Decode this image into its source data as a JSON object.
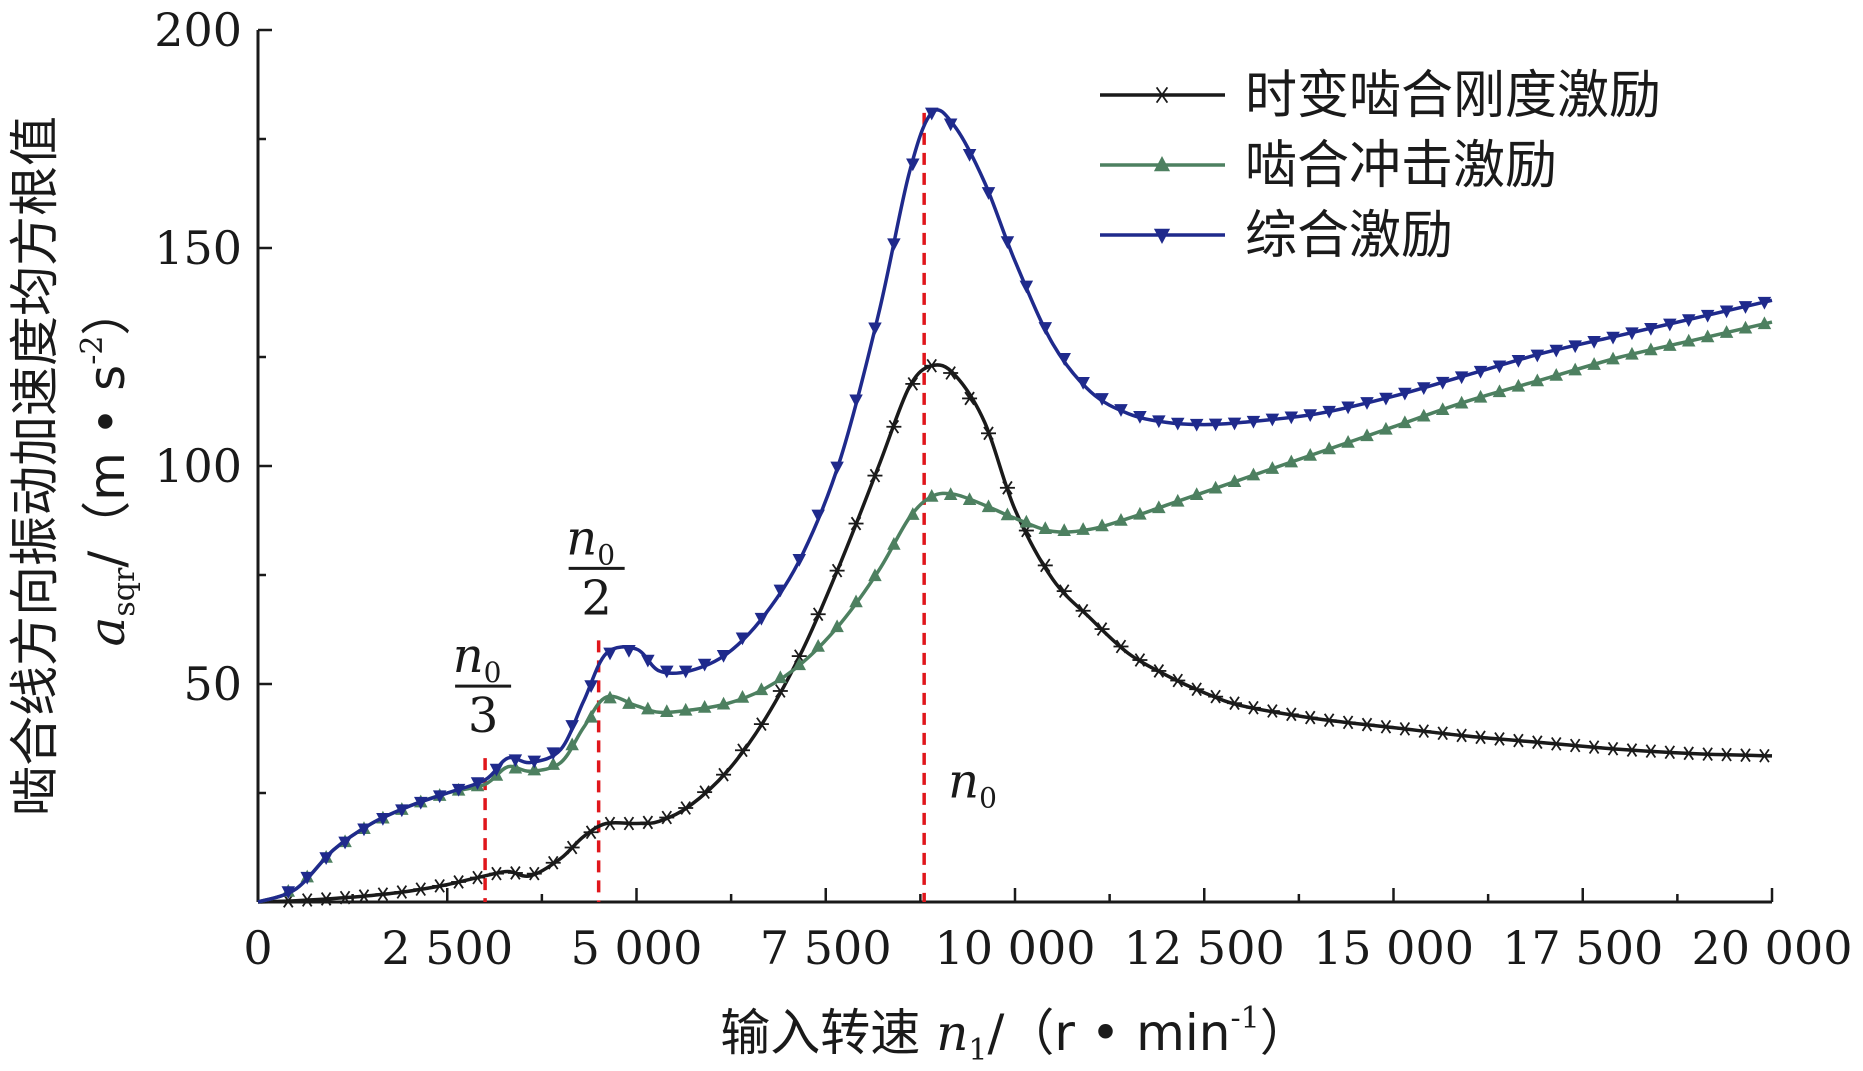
{
  "chart_data": {
    "type": "line",
    "xlabel": "输入转速",
    "xlabel_var": "n",
    "xlabel_var_sub": "1",
    "xlabel_unit": "/（r • min",
    "xlabel_unit_sup": "-1",
    "xlabel_unit_close": "）",
    "ylabel": "啮合线方向振动加速度均方根值",
    "ylabel_var": "a",
    "ylabel_var_sub": "sqr",
    "ylabel_unit": "/（m • s",
    "ylabel_unit_sup": "-2",
    "ylabel_unit_close": "）",
    "xlim": [
      0,
      20000
    ],
    "ylim": [
      0,
      200
    ],
    "xticks": [
      0,
      2500,
      5000,
      7500,
      10000,
      12500,
      15000,
      17500,
      20000
    ],
    "xtick_labels": [
      "0",
      "2 500",
      "5 000",
      "7 500",
      "10 000",
      "12 500",
      "15 000",
      "17 500",
      "20 000"
    ],
    "yticks": [
      50,
      100,
      150,
      200
    ],
    "ytick_labels": [
      "50",
      "100",
      "150",
      "200"
    ],
    "legend_position": "top-right",
    "series": [
      {
        "name": "时变啮合刚度激励",
        "color": "#1a1a1a",
        "marker": "asterisk",
        "x": [
          0,
          500,
          1000,
          1500,
          2000,
          2500,
          3000,
          3300,
          3600,
          4000,
          4300,
          4600,
          5000,
          5300,
          5700,
          6200,
          6700,
          7200,
          7700,
          8200,
          8600,
          8900,
          9200,
          9600,
          10000,
          10500,
          11000,
          11500,
          12000,
          12500,
          13000,
          14000,
          15000,
          16000,
          17000,
          18000,
          19000,
          20000
        ],
        "values": [
          0,
          0.3,
          0.8,
          1.5,
          2.5,
          4,
          6,
          7,
          6,
          10,
          15,
          18,
          18,
          18.5,
          22,
          30,
          42,
          58,
          78,
          100,
          118,
          123,
          121,
          110,
          90,
          74,
          65,
          57,
          52,
          48,
          45,
          42,
          40,
          38,
          36.5,
          35,
          34,
          33.5
        ]
      },
      {
        "name": "啮合冲击激励",
        "color": "#4d8060",
        "marker": "triangle-up",
        "x": [
          0,
          500,
          1000,
          1500,
          2000,
          2500,
          3000,
          3300,
          3600,
          4000,
          4300,
          4600,
          5000,
          5300,
          5700,
          6200,
          6700,
          7200,
          7700,
          8200,
          8600,
          8900,
          9200,
          9600,
          10000,
          10500,
          11000,
          11500,
          12000,
          12500,
          13000,
          14000,
          15000,
          16000,
          17000,
          18000,
          19000,
          20000
        ],
        "values": [
          0,
          3,
          12,
          18,
          22,
          25,
          27,
          31,
          30,
          32,
          40,
          47,
          45,
          43.5,
          44,
          45.5,
          49,
          55,
          64,
          76,
          88,
          93,
          93.5,
          91,
          88,
          85,
          85.5,
          88,
          91,
          94,
          97,
          103,
          109,
          115,
          120,
          125,
          129,
          133
        ]
      },
      {
        "name": "综合激励",
        "color": "#1f2a8c",
        "marker": "triangle-down",
        "x": [
          0,
          500,
          1000,
          1500,
          2000,
          2500,
          3000,
          3300,
          3600,
          4000,
          4300,
          4600,
          5000,
          5300,
          5700,
          6200,
          6700,
          7200,
          7700,
          8200,
          8600,
          8900,
          9200,
          9600,
          10000,
          10500,
          11000,
          11500,
          12000,
          12500,
          13000,
          14000,
          15000,
          16000,
          17000,
          18000,
          19000,
          20000
        ],
        "values": [
          0,
          3,
          12,
          18,
          22,
          25,
          28,
          33,
          32,
          35,
          46,
          57,
          58,
          53,
          53,
          57,
          66,
          80,
          102,
          135,
          167,
          181,
          178,
          165,
          147,
          128,
          117,
          112,
          110,
          109.5,
          110,
          112,
          116,
          121,
          126,
          130,
          134,
          138
        ]
      }
    ],
    "markers": [
      {
        "x": 3000,
        "y_top": 33,
        "label_num": "n",
        "label_num_sub": "0",
        "label_den": "3"
      },
      {
        "x": 4500,
        "y_top": 60,
        "label_num": "n",
        "label_num_sub": "0",
        "label_den": "2"
      },
      {
        "x": 8800,
        "y_top": 181,
        "label": "n",
        "label_sub": "0"
      }
    ],
    "marker_line_color": "#e0161b"
  }
}
